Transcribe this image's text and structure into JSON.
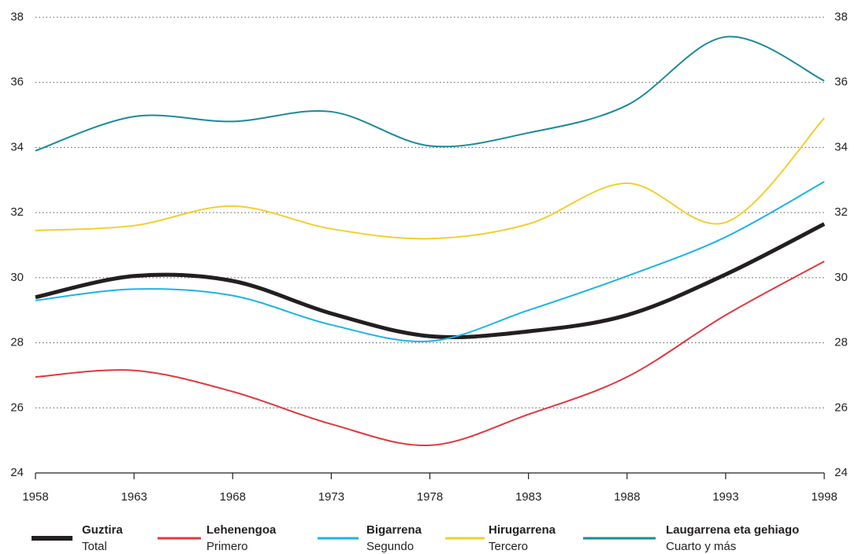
{
  "chart_data": {
    "type": "line",
    "x": [
      1958,
      1963,
      1968,
      1973,
      1978,
      1983,
      1988,
      1993,
      1998
    ],
    "xlim": [
      1958,
      1998
    ],
    "xticks": [
      1958,
      1963,
      1968,
      1973,
      1978,
      1983,
      1988,
      1993,
      1998
    ],
    "ylim": [
      24,
      38
    ],
    "yticks": [
      24,
      26,
      28,
      30,
      32,
      34,
      36,
      38
    ],
    "grid": true,
    "series": [
      {
        "name": "Guztira",
        "subname": "Total",
        "color": "#231f20",
        "width": 5,
        "values": [
          29.4,
          30.05,
          29.9,
          28.9,
          28.2,
          28.35,
          28.85,
          30.1,
          31.65
        ]
      },
      {
        "name": "Lehenengoa",
        "subname": "Primero",
        "color": "#e0393e",
        "width": 2,
        "values": [
          26.95,
          27.15,
          26.5,
          25.5,
          24.85,
          25.8,
          26.95,
          28.85,
          30.5
        ]
      },
      {
        "name": "Bigarrena",
        "subname": "Segundo",
        "color": "#1bb4e8",
        "width": 2,
        "values": [
          29.3,
          29.65,
          29.45,
          28.55,
          28.05,
          29.0,
          30.05,
          31.25,
          32.95
        ]
      },
      {
        "name": "Hirugarrena",
        "subname": "Tercero",
        "color": "#f2cf2d",
        "width": 2,
        "values": [
          31.45,
          31.6,
          32.2,
          31.5,
          31.2,
          31.65,
          32.9,
          31.7,
          34.9
        ]
      },
      {
        "name": "Laugarrena eta gehiago",
        "subname": "Cuarto y más",
        "color": "#1a8a9a",
        "width": 2,
        "values": [
          33.9,
          34.95,
          34.8,
          35.1,
          34.05,
          34.45,
          35.3,
          37.4,
          36.05
        ]
      }
    ]
  }
}
